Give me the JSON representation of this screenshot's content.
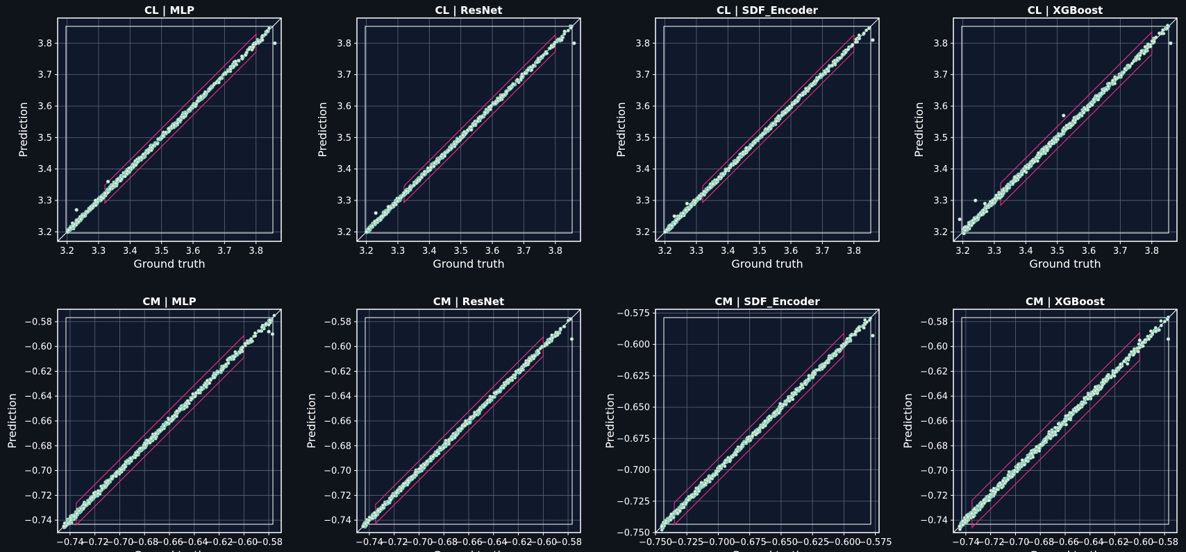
{
  "chart_data": [
    {
      "type": "scatter",
      "title": "CL | MLP",
      "xlabel": "Ground truth",
      "ylabel": "Prediction",
      "xlim": [
        3.17,
        3.88
      ],
      "ylim": [
        3.17,
        3.88
      ],
      "ticks": [
        3.2,
        3.3,
        3.4,
        3.5,
        3.6,
        3.7,
        3.8
      ],
      "tick_labels": [
        "3.2",
        "3.3",
        "3.4",
        "3.5",
        "3.6",
        "3.7",
        "3.8"
      ],
      "range": [
        3.2,
        3.86
      ],
      "band": [
        3.32,
        3.8
      ],
      "spread": 0.013,
      "outliers": [
        [
          3.23,
          3.27
        ],
        [
          3.29,
          3.3
        ],
        [
          3.33,
          3.36
        ],
        [
          3.86,
          3.8
        ],
        [
          3.82,
          3.81
        ]
      ],
      "grid": true
    },
    {
      "type": "scatter",
      "title": "CL | ResNet",
      "xlabel": "Ground truth",
      "ylabel": "Prediction",
      "xlim": [
        3.17,
        3.88
      ],
      "ylim": [
        3.17,
        3.88
      ],
      "ticks": [
        3.2,
        3.3,
        3.4,
        3.5,
        3.6,
        3.7,
        3.8
      ],
      "tick_labels": [
        "3.2",
        "3.3",
        "3.4",
        "3.5",
        "3.6",
        "3.7",
        "3.8"
      ],
      "range": [
        3.2,
        3.86
      ],
      "band": [
        3.32,
        3.8
      ],
      "spread": 0.012,
      "outliers": [
        [
          3.2,
          3.2
        ],
        [
          3.23,
          3.26
        ],
        [
          3.27,
          3.28
        ],
        [
          3.86,
          3.8
        ],
        [
          3.82,
          3.81
        ]
      ],
      "grid": true
    },
    {
      "type": "scatter",
      "title": "CL | SDF_Encoder",
      "xlabel": "Ground truth",
      "ylabel": "Prediction",
      "xlim": [
        3.17,
        3.88
      ],
      "ylim": [
        3.17,
        3.88
      ],
      "ticks": [
        3.2,
        3.3,
        3.4,
        3.5,
        3.6,
        3.7,
        3.8
      ],
      "tick_labels": [
        "3.2",
        "3.3",
        "3.4",
        "3.5",
        "3.6",
        "3.7",
        "3.8"
      ],
      "range": [
        3.2,
        3.86
      ],
      "band": [
        3.32,
        3.8
      ],
      "spread": 0.012,
      "outliers": [
        [
          3.2,
          3.2
        ],
        [
          3.23,
          3.25
        ],
        [
          3.27,
          3.29
        ],
        [
          3.86,
          3.81
        ]
      ],
      "grid": true
    },
    {
      "type": "scatter",
      "title": "CL | XGBoost",
      "xlabel": "Ground truth",
      "ylabel": "Prediction",
      "xlim": [
        3.17,
        3.88
      ],
      "ylim": [
        3.17,
        3.88
      ],
      "ticks": [
        3.2,
        3.3,
        3.4,
        3.5,
        3.6,
        3.7,
        3.8
      ],
      "tick_labels": [
        "3.2",
        "3.3",
        "3.4",
        "3.5",
        "3.6",
        "3.7",
        "3.8"
      ],
      "range": [
        3.2,
        3.86
      ],
      "band": [
        3.32,
        3.8
      ],
      "spread": 0.016,
      "outliers": [
        [
          3.19,
          3.24
        ],
        [
          3.24,
          3.3
        ],
        [
          3.27,
          3.29
        ],
        [
          3.52,
          3.57
        ],
        [
          3.86,
          3.8
        ]
      ],
      "grid": true
    },
    {
      "type": "scatter",
      "title": "CM | MLP",
      "xlabel": "Ground truth",
      "ylabel": "Prediction",
      "xlim": [
        -0.75,
        -0.57
      ],
      "ylim": [
        -0.75,
        -0.57
      ],
      "ticks": [
        -0.74,
        -0.72,
        -0.7,
        -0.68,
        -0.66,
        -0.64,
        -0.62,
        -0.6,
        -0.58
      ],
      "tick_labels": [
        "−0.74",
        "−0.72",
        "−0.70",
        "−0.68",
        "−0.66",
        "−0.64",
        "−0.62",
        "−0.60",
        "−0.58"
      ],
      "range": [
        -0.745,
        -0.575
      ],
      "band": [
        -0.735,
        -0.6
      ],
      "spread": 0.004,
      "outliers": [
        [
          -0.745,
          -0.745
        ],
        [
          -0.577,
          -0.59
        ],
        [
          -0.58,
          -0.588
        ]
      ],
      "grid": true
    },
    {
      "type": "scatter",
      "title": "CM | ResNet",
      "xlabel": "Ground truth",
      "ylabel": "Prediction",
      "xlim": [
        -0.75,
        -0.57
      ],
      "ylim": [
        -0.75,
        -0.57
      ],
      "ticks": [
        -0.74,
        -0.72,
        -0.7,
        -0.68,
        -0.66,
        -0.64,
        -0.62,
        -0.6,
        -0.58
      ],
      "tick_labels": [
        "−0.74",
        "−0.72",
        "−0.70",
        "−0.68",
        "−0.66",
        "−0.64",
        "−0.62",
        "−0.60",
        "−0.58"
      ],
      "range": [
        -0.745,
        -0.575
      ],
      "band": [
        -0.735,
        -0.6
      ],
      "spread": 0.0035,
      "outliers": [
        [
          -0.745,
          -0.745
        ],
        [
          -0.577,
          -0.594
        ]
      ],
      "grid": true
    },
    {
      "type": "scatter",
      "title": "CM | SDF_Encoder",
      "xlabel": "Ground truth",
      "ylabel": "Prediction",
      "xlim": [
        -0.75,
        -0.572
      ],
      "ylim": [
        -0.75,
        -0.572
      ],
      "ticks": [
        -0.75,
        -0.725,
        -0.7,
        -0.675,
        -0.65,
        -0.625,
        -0.6,
        -0.575
      ],
      "tick_labels": [
        "−0.750",
        "−0.725",
        "−0.700",
        "−0.675",
        "−0.650",
        "−0.625",
        "−0.600",
        "−0.575"
      ],
      "range": [
        -0.745,
        -0.575
      ],
      "band": [
        -0.735,
        -0.6
      ],
      "spread": 0.004,
      "outliers": [
        [
          -0.745,
          -0.745
        ],
        [
          -0.577,
          -0.593
        ]
      ],
      "grid": true
    },
    {
      "type": "scatter",
      "title": "CM | XGBoost",
      "xlabel": "Ground truth",
      "ylabel": "Prediction",
      "xlim": [
        -0.75,
        -0.57
      ],
      "ylim": [
        -0.75,
        -0.57
      ],
      "ticks": [
        -0.74,
        -0.72,
        -0.7,
        -0.68,
        -0.66,
        -0.64,
        -0.62,
        -0.6,
        -0.58
      ],
      "tick_labels": [
        "−0.74",
        "−0.72",
        "−0.70",
        "−0.68",
        "−0.66",
        "−0.64",
        "−0.62",
        "−0.60",
        "−0.58"
      ],
      "range": [
        -0.745,
        -0.575
      ],
      "band": [
        -0.735,
        -0.6
      ],
      "spread": 0.005,
      "outliers": [
        [
          -0.745,
          -0.745
        ],
        [
          -0.577,
          -0.594
        ],
        [
          -0.6,
          -0.595
        ]
      ],
      "grid": true
    }
  ],
  "colors": {
    "background": "#0f141b",
    "axes_face": "#10182b",
    "grid": "#5b667c",
    "spine": "#ffffff",
    "identity_line": "#ffffff",
    "band": "#d9327a",
    "point_fill": "#f5ead6",
    "point_edge": "#6fc7b8",
    "outlier_edge": "#e2739a",
    "text": "#ffffff"
  }
}
